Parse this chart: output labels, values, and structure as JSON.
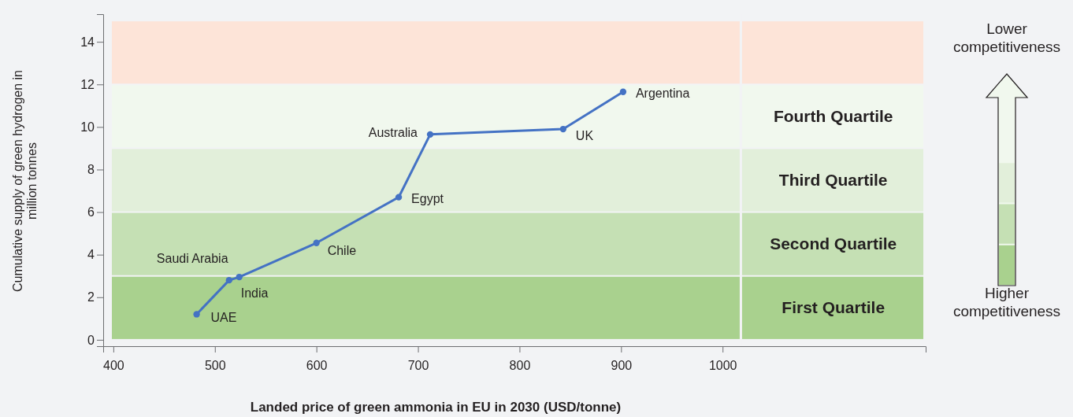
{
  "chart_data": {
    "type": "line",
    "xlabel": "Landed price of green ammonia in EU in 2030 (USD/tonne)",
    "ylabel": "Cumulative supply of green hydrogen in million tonnes",
    "x": [
      482,
      514,
      524,
      600,
      681,
      712,
      843,
      902
    ],
    "series": [
      {
        "color": "#4472c4",
        "values": [
          1.2,
          2.8,
          2.95,
          4.55,
          6.7,
          9.65,
          9.9,
          11.65
        ]
      }
    ],
    "marker": "circle",
    "line_style": "solid",
    "xlim": [
      390,
      1200
    ],
    "xticks": [
      400,
      500,
      600,
      700,
      800,
      900,
      1000
    ],
    "ylim": [
      -0.3,
      15.3
    ],
    "yticks": [
      0,
      2,
      4,
      6,
      8,
      10,
      12,
      14
    ],
    "bands": [
      {
        "axis": "y",
        "from": 0,
        "to": 3,
        "label": "First Quartile",
        "color": "#a9d18e"
      },
      {
        "axis": "y",
        "from": 3,
        "to": 6,
        "label": "Second Quartile",
        "color": "#c5e0b4"
      },
      {
        "axis": "y",
        "from": 6,
        "to": 9,
        "label": "Third Quartile",
        "color": "#e2efda"
      },
      {
        "axis": "y",
        "from": 9,
        "to": 12,
        "label": "Fourth Quartile",
        "color": "#f1f8ee"
      },
      {
        "axis": "y",
        "from": 12,
        "to": 15,
        "color": "#fde4d8"
      }
    ],
    "annotations": [
      {
        "text": "UAE",
        "x": 482,
        "y": 1.2
      },
      {
        "text": "Saudi Arabia",
        "x": 514,
        "y": 2.8
      },
      {
        "text": "India",
        "x": 524,
        "y": 2.95
      },
      {
        "text": "Chile",
        "x": 600,
        "y": 4.55
      },
      {
        "text": "Egypt",
        "x": 681,
        "y": 6.7
      },
      {
        "text": "Australia",
        "x": 712,
        "y": 9.65
      },
      {
        "text": "UK",
        "x": 843,
        "y": 9.9
      },
      {
        "text": "Argentina",
        "x": 902,
        "y": 11.65
      },
      "Lower competitiveness",
      "Higher competitiveness"
    ]
  }
}
